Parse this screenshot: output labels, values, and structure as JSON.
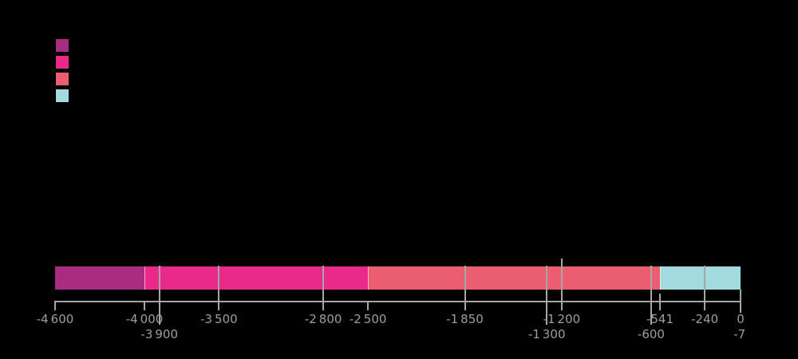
{
  "background_color": "#000000",
  "legend": {
    "swatches": [
      {
        "name": "legend-swatch-1",
        "color": "#A82C80"
      },
      {
        "name": "legend-swatch-2",
        "color": "#EA2A8A"
      },
      {
        "name": "legend-swatch-3",
        "color": "#EB5E72"
      },
      {
        "name": "legend-swatch-4",
        "color": "#A2DADD"
      }
    ]
  },
  "chart_data": {
    "type": "bar",
    "subtype": "horizontal-timeline",
    "title": "",
    "xlabel": "",
    "ylabel": "",
    "axis": {
      "min": -4600,
      "max": 0,
      "grid": false
    },
    "colors": {
      "axis": "#A6A6A6",
      "line": "#A6A6A6",
      "tick_text": "#9E9E9E"
    },
    "segments": [
      {
        "start": -4600,
        "end": -4000,
        "color": "#A82C80"
      },
      {
        "start": -4000,
        "end": -2500,
        "color": "#EA2A8A"
      },
      {
        "start": -2500,
        "end": -541,
        "color": "#EB5E72"
      },
      {
        "start": -541,
        "end": 0,
        "color": "#A2DADD"
      }
    ],
    "ticks": [
      {
        "value": -4600,
        "label": "-4 600",
        "row": 1,
        "line_through_bar": false
      },
      {
        "value": -4000,
        "label": "-4 000",
        "row": 1,
        "line_through_bar": false
      },
      {
        "value": -3900,
        "label": "-3 900",
        "row": 2,
        "line_through_bar": true
      },
      {
        "value": -3500,
        "label": "-3 500",
        "row": 1,
        "line_through_bar": true
      },
      {
        "value": -2800,
        "label": "-2 800",
        "row": 1,
        "line_through_bar": true
      },
      {
        "value": -2500,
        "label": "-2 500",
        "row": 1,
        "line_through_bar": false
      },
      {
        "value": -1850,
        "label": "-1 850",
        "row": 1,
        "line_through_bar": true
      },
      {
        "value": -1300,
        "label": "-1 300",
        "row": 2,
        "line_through_bar": true
      },
      {
        "value": -1200,
        "label": "-1 200",
        "row": 1,
        "line_through_bar": true,
        "extends_above_bar": true
      },
      {
        "value": -600,
        "label": "-600",
        "row": 2,
        "line_through_bar": true
      },
      {
        "value": -541,
        "label": "-541",
        "row": 1,
        "line_through_bar": false,
        "tick_top": 368
      },
      {
        "value": -240,
        "label": "-240",
        "row": 1,
        "line_through_bar": true
      },
      {
        "value": -7,
        "label": "-7",
        "row": 2,
        "line_through_bar": false,
        "no_tick": true
      },
      {
        "value": 0,
        "label": "0",
        "row": 1,
        "line_through_bar": false,
        "tick_top": 363,
        "tick_bottom": 392
      }
    ]
  }
}
